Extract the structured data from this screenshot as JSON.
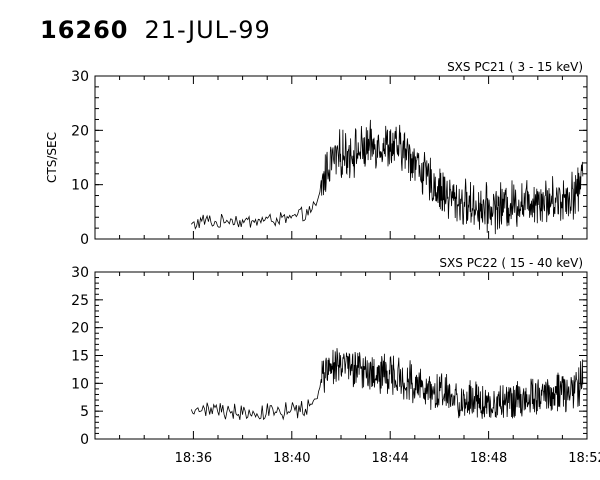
{
  "header": {
    "event_id": "16260",
    "date": "21-JUL-99"
  },
  "chart_data": [
    {
      "type": "line",
      "title": "SXS PC21  (  3 - 15 keV)",
      "xlabel": "",
      "ylabel": "CTS/SEC",
      "ylim": [
        0,
        30
      ],
      "yticks": [
        0,
        10,
        20,
        30
      ],
      "xlim": [
        "18:32",
        "18:52"
      ],
      "xticks": [
        "18:36",
        "18:40",
        "18:44",
        "18:48",
        "18:52"
      ],
      "show_xtick_labels": false,
      "grid": false,
      "series": [
        {
          "x": [
            "18:35:55",
            "18:36:30",
            "18:37:00",
            "18:37:30",
            "18:38:00",
            "18:38:30",
            "18:39:00",
            "18:39:30",
            "18:40:00",
            "18:40:30",
            "18:41:00",
            "18:41:10",
            "18:41:30",
            "18:42:00",
            "18:42:30",
            "18:43:00",
            "18:43:30",
            "18:44:00",
            "18:44:30",
            "18:45:00",
            "18:45:30",
            "18:46:00",
            "18:46:30",
            "18:47:00",
            "18:47:30",
            "18:48:00",
            "18:48:30",
            "18:49:00",
            "18:49:30",
            "18:50:00",
            "18:50:30",
            "18:51:00",
            "18:51:15",
            "18:51:40",
            "18:51:50"
          ],
          "y": [
            2.5,
            3.5,
            2.8,
            3.8,
            3.0,
            3.4,
            3.5,
            3.6,
            3.8,
            4.5,
            6.0,
            9.0,
            14.0,
            15.5,
            16.0,
            16.5,
            17.5,
            17.0,
            16.5,
            14.5,
            11.0,
            9.0,
            7.5,
            6.5,
            6.0,
            5.5,
            6.0,
            6.5,
            7.0,
            7.5,
            7.0,
            7.5,
            8.0,
            9.0,
            13.0
          ]
        }
      ]
    },
    {
      "type": "line",
      "title": "SXS PC22  ( 15 - 40 keV)",
      "xlabel": "",
      "ylabel": "",
      "ylim": [
        0,
        30
      ],
      "yticks": [
        0,
        5,
        10,
        15,
        20,
        25,
        30
      ],
      "xlim": [
        "18:32",
        "18:52"
      ],
      "xticks": [
        "18:36",
        "18:40",
        "18:44",
        "18:48",
        "18:52"
      ],
      "show_xtick_labels": true,
      "grid": false,
      "series": [
        {
          "x": [
            "18:35:55",
            "18:36:30",
            "18:37:00",
            "18:37:30",
            "18:38:00",
            "18:38:30",
            "18:39:00",
            "18:39:30",
            "18:40:00",
            "18:40:30",
            "18:41:00",
            "18:41:10",
            "18:41:30",
            "18:42:00",
            "18:42:30",
            "18:43:00",
            "18:43:30",
            "18:44:00",
            "18:44:30",
            "18:45:00",
            "18:45:30",
            "18:46:00",
            "18:46:30",
            "18:47:00",
            "18:47:30",
            "18:48:00",
            "18:48:30",
            "18:49:00",
            "18:49:30",
            "18:50:00",
            "18:50:30",
            "18:51:00",
            "18:51:15",
            "18:51:40",
            "18:51:50"
          ],
          "y": [
            5.0,
            5.5,
            5.0,
            5.2,
            5.0,
            4.8,
            4.8,
            5.0,
            5.2,
            5.5,
            7.0,
            10.0,
            13.0,
            13.0,
            12.5,
            12.5,
            12.0,
            11.5,
            11.0,
            10.0,
            8.5,
            8.0,
            7.5,
            7.0,
            7.0,
            6.5,
            6.5,
            7.0,
            7.5,
            8.0,
            8.0,
            8.5,
            9.0,
            9.5,
            13.0
          ]
        }
      ]
    }
  ]
}
